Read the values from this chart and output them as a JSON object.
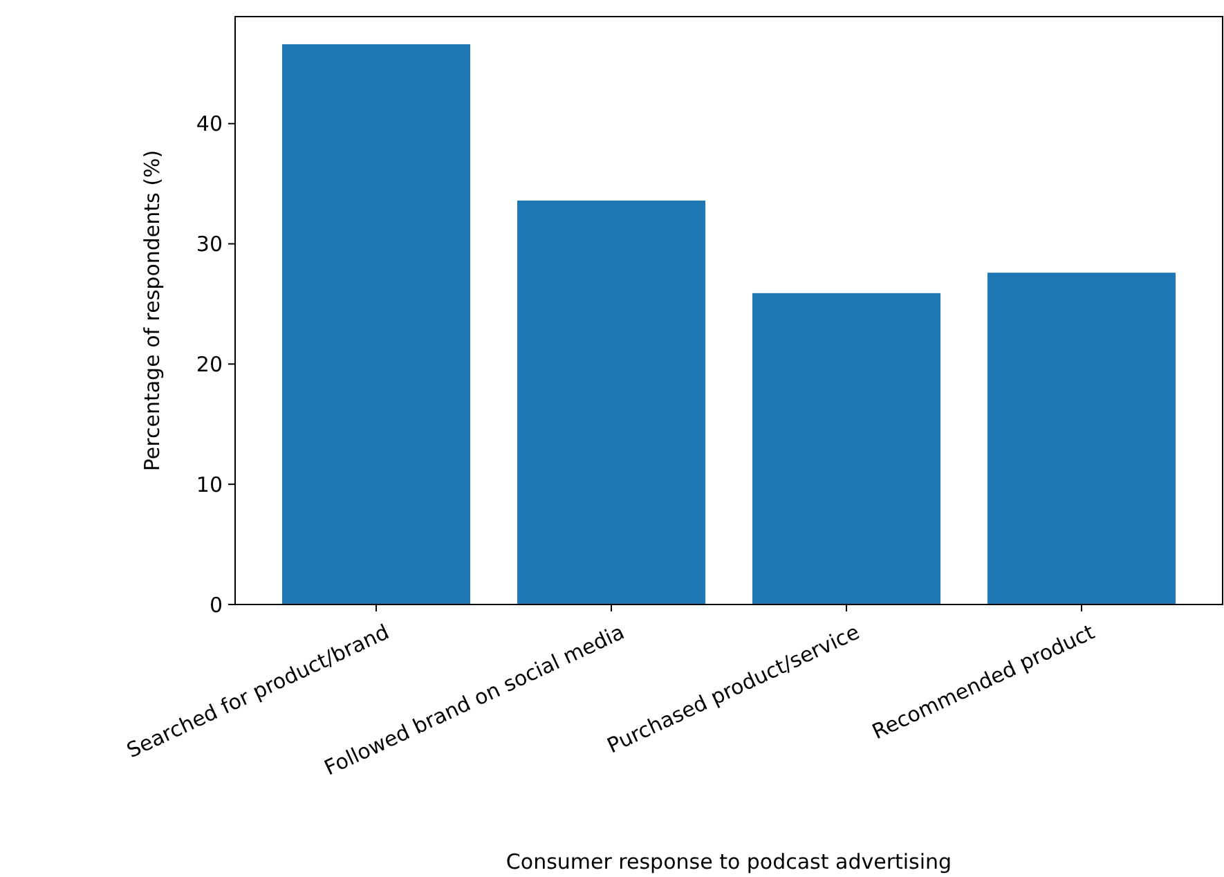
{
  "chart_data": {
    "type": "bar",
    "xlabel": "Consumer response to podcast advertising",
    "ylabel": "Percentage of respondents (%)",
    "categories": [
      "Searched for product/brand",
      "Followed brand on social media",
      "Purchased product/service",
      "Recommended product"
    ],
    "values": [
      46.6,
      33.6,
      25.9,
      27.6
    ],
    "color": "#1f77b4",
    "ylim": [
      0,
      48.9
    ],
    "yticks": [
      0,
      10,
      20,
      30,
      40
    ],
    "grid": false
  }
}
